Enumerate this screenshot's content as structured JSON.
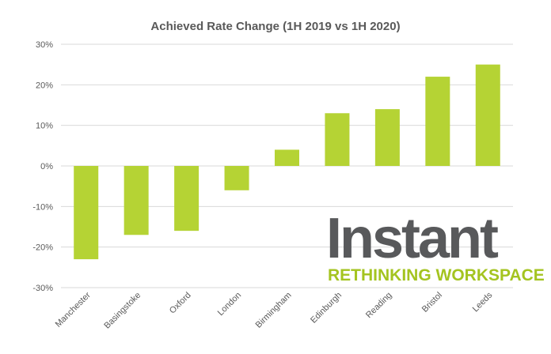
{
  "chart_data": {
    "type": "bar",
    "title": "Achieved Rate Change (1H 2019 vs 1H 2020)",
    "xlabel": "",
    "ylabel": "",
    "categories": [
      "Manchester",
      "Basingstoke",
      "Oxford",
      "London",
      "Birmingham",
      "Edinburgh",
      "Reading",
      "Bristol",
      "Leeds"
    ],
    "values": [
      -23,
      -17,
      -16,
      -6,
      4,
      13,
      14,
      22,
      25
    ],
    "ylim": [
      -30,
      30
    ],
    "yticks": [
      30,
      20,
      10,
      0,
      -10,
      -20,
      -30
    ],
    "ytick_labels": [
      "30%",
      "20%",
      "10%",
      "0%",
      "-10%",
      "-20%",
      "-30%"
    ],
    "grid": true,
    "bar_color": "#b5d334"
  },
  "logo": {
    "name": "Instant",
    "tagline": "RETHINKING WORKSPACE"
  }
}
